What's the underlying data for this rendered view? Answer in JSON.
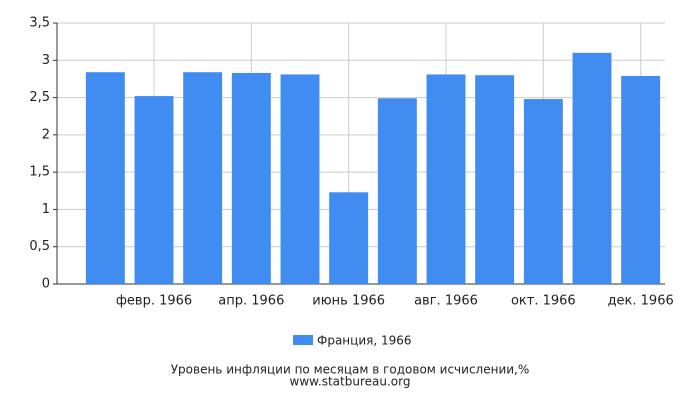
{
  "chart_data": {
    "type": "bar",
    "categories": [
      null,
      "февр. 1966",
      null,
      "апр. 1966",
      null,
      "июнь 1966",
      null,
      "авг. 1966",
      null,
      "окт. 1966",
      null,
      "дек. 1966"
    ],
    "series": [
      {
        "name": "Франция, 1966",
        "color": "#418cf0",
        "values": [
          2.84,
          2.52,
          2.84,
          2.83,
          2.81,
          1.23,
          2.49,
          2.81,
          2.8,
          2.48,
          3.1,
          2.79
        ]
      }
    ],
    "ylim": [
      0,
      3.5
    ],
    "yticks": [
      0,
      {
        "value": 0.5,
        "label": "0,5"
      },
      1,
      {
        "value": 1.5,
        "label": "1,5"
      },
      2,
      {
        "value": 2.5,
        "label": "2,5"
      },
      3,
      {
        "value": 3.5,
        "label": "3,5"
      }
    ],
    "grid": true,
    "legend": "bottom",
    "caption": "Уровень инфляции по месяцам в годовом исчислении,%",
    "source": "www.statbureau.org"
  }
}
